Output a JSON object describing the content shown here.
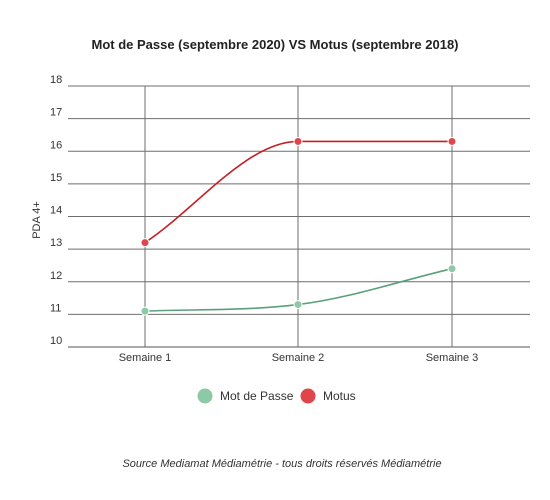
{
  "chart_data": {
    "type": "line",
    "title": "Mot de Passe (septembre 2020) VS Motus (septembre 2018)",
    "xlabel": "",
    "ylabel": "PDA 4+",
    "categories": [
      "Semaine 1",
      "Semaine 2",
      "Semaine 3"
    ],
    "ylim": [
      10,
      18
    ],
    "yticks": [
      "10",
      "11",
      "12",
      "13",
      "14",
      "15",
      "16",
      "17",
      "18"
    ],
    "grid": true,
    "legend": "bottom",
    "series": [
      {
        "name": "Mot de Passe",
        "values": [
          11.1,
          11.3,
          12.4
        ],
        "color": "#8cc9a5",
        "line_color": "#5aa07a"
      },
      {
        "name": "Motus",
        "values": [
          13.2,
          16.3,
          16.3
        ],
        "color": "#e0454b",
        "line_color": "#c62026"
      }
    ]
  },
  "source": "Source Mediamat Médiamétrie - tous droits réservés Médiamétrie"
}
